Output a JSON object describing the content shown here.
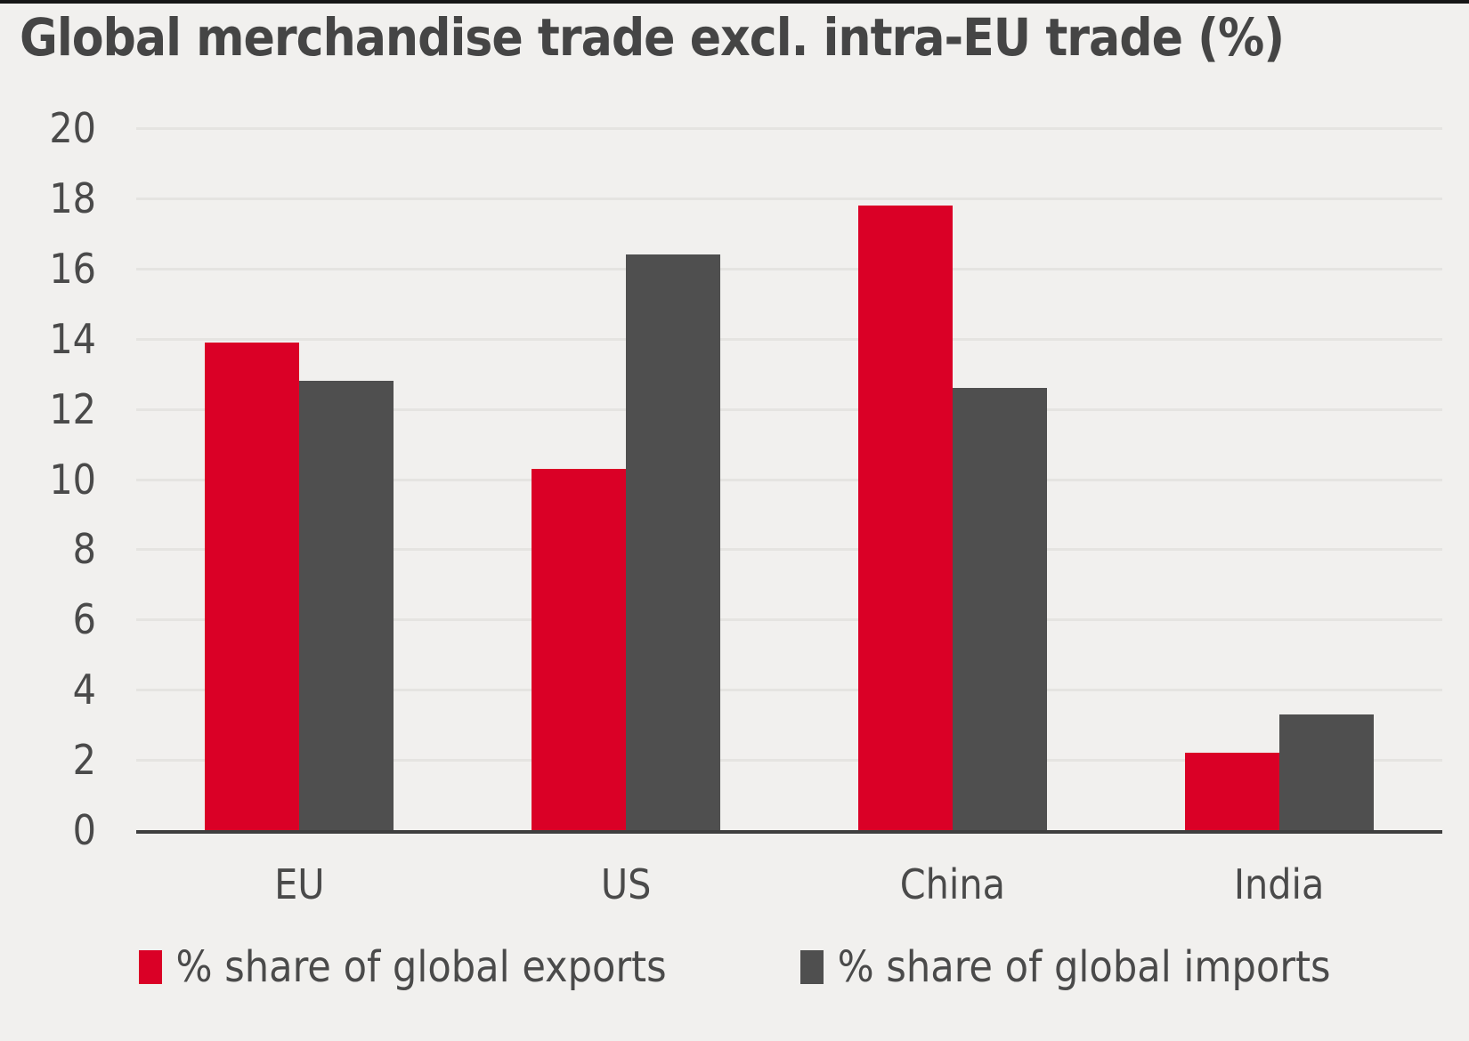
{
  "title": "Global merchandise trade excl. intra-EU trade (%)",
  "colors": {
    "background": "#F1F0EE",
    "top_rule": "#161616",
    "gridline": "#E5E4E1",
    "axis_line": "#3F3F3F",
    "text": "#4A4A4A",
    "exports_red": "#DA0026",
    "imports_gray": "#4F4F4F"
  },
  "chart_data": {
    "type": "bar",
    "title": "Global merchandise trade excl. intra-EU trade (%)",
    "categories": [
      "EU",
      "US",
      "China",
      "India"
    ],
    "series": [
      {
        "name": "% share of global exports",
        "color": "#DA0026",
        "values": [
          13.9,
          10.3,
          17.8,
          2.2
        ]
      },
      {
        "name": "% share of global imports",
        "color": "#4F4F4F",
        "values": [
          12.8,
          16.4,
          12.6,
          3.3
        ]
      }
    ],
    "xlabel": "",
    "ylabel": "",
    "ylim": [
      0,
      20
    ],
    "yticks": [
      0,
      2,
      4,
      6,
      8,
      10,
      12,
      14,
      16,
      18,
      20
    ],
    "grid": true,
    "legend_position": "bottom"
  }
}
